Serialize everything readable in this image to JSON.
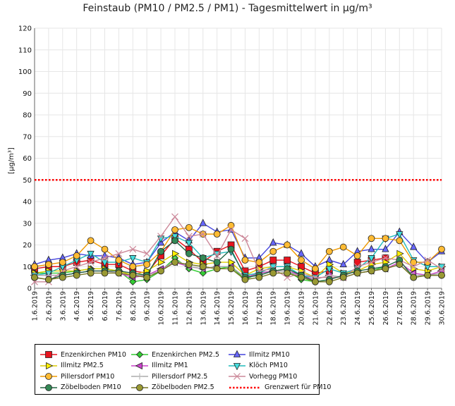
{
  "chart_data": {
    "type": "line",
    "title": "Feinstaub (PM10 / PM2.5 / PM1) -  Tagesmittelwert in µg/m³",
    "ylabel": "[µg/m³]",
    "xlabel": "",
    "ylim": [
      0,
      120
    ],
    "yticks": [
      0,
      10,
      20,
      30,
      40,
      50,
      60,
      70,
      80,
      90,
      100,
      110,
      120
    ],
    "grid": true,
    "legend_position": "bottom",
    "categories": [
      "1.6.2019",
      "2.6.2019",
      "3.6.2019",
      "4.6.2019",
      "5.6.2019",
      "6.6.2019",
      "7.6.2019",
      "8.6.2019",
      "9.6.2019",
      "10.6.2019",
      "11.6.2019",
      "12.6.2019",
      "13.6.2019",
      "14.6.2019",
      "15.6.2019",
      "16.6.2019",
      "17.6.2019",
      "18.6.2019",
      "19.6.2019",
      "20.6.2019",
      "21.6.2019",
      "22.6.2019",
      "23.6.2019",
      "24.6.2019",
      "25.6.2019",
      "26.6.2019",
      "27.6.2019",
      "28.6.2019",
      "29.6.2019",
      "30.6.2019"
    ],
    "series": [
      {
        "name": "Enzenkirchen PM10",
        "color": "#e8141e",
        "stroke": "#e8141e",
        "marker": "square",
        "values": [
          9,
          10,
          10,
          12,
          13,
          11,
          11,
          8,
          7,
          15,
          23,
          18,
          12,
          17,
          20,
          8,
          10,
          13,
          13,
          10,
          7,
          8,
          null,
          12,
          13,
          14,
          null,
          null,
          null,
          null
        ]
      },
      {
        "name": "Enzenkirchen PM2.5",
        "color": "#33cc33",
        "stroke": "#33cc33",
        "marker": "diamond",
        "values": [
          7,
          7,
          7,
          8,
          9,
          9,
          8,
          3,
          4,
          8,
          14,
          9,
          7,
          9,
          10,
          4,
          7,
          8,
          8,
          4,
          3,
          4,
          null,
          7,
          8,
          10,
          null,
          null,
          null,
          null
        ]
      },
      {
        "name": "Illmitz PM10",
        "color": "#6666ff",
        "stroke": "#4444dd",
        "marker": "triangle-up",
        "values": [
          11,
          13,
          14,
          16,
          15,
          15,
          14,
          11,
          12,
          21,
          26,
          22,
          30,
          26,
          27,
          14,
          14,
          21,
          20,
          16,
          10,
          13,
          11,
          17,
          18,
          18,
          26,
          19,
          12,
          17
        ]
      },
      {
        "name": "Illmitz PM2.5",
        "color": "#ffee00",
        "stroke": "#ddcc00",
        "marker": "triangle-right",
        "values": [
          7,
          8,
          8,
          8,
          9,
          9,
          8,
          6,
          8,
          12,
          16,
          12,
          11,
          12,
          12,
          6,
          9,
          10,
          10,
          8,
          5,
          11,
          7,
          8,
          11,
          12,
          16,
          9,
          8,
          10
        ]
      },
      {
        "name": "Illmitz PM1",
        "color": "#cc44cc",
        "stroke": "#cc44cc",
        "marker": "triangle-left",
        "values": [
          6,
          6,
          6,
          7,
          8,
          8,
          7,
          5,
          6,
          9,
          12,
          10,
          9,
          10,
          10,
          5,
          7,
          8,
          8,
          6,
          4,
          6,
          5,
          7,
          8,
          9,
          12,
          7,
          6,
          8
        ]
      },
      {
        "name": "Klöch PM10",
        "color": "#44dddd",
        "stroke": "#22bbbb",
        "marker": "triangle-down",
        "values": [
          6,
          7,
          10,
          13,
          16,
          12,
          12,
          14,
          12,
          23,
          24,
          21,
          14,
          16,
          17,
          6,
          7,
          10,
          10,
          6,
          5,
          9,
          7,
          9,
          14,
          23,
          25,
          13,
          10,
          10
        ]
      },
      {
        "name": "Pillersdorf PM10",
        "color": "#ffbb33",
        "stroke": "#ee9900",
        "marker": "circle",
        "values": [
          10,
          11,
          12,
          15,
          22,
          18,
          13,
          10,
          11,
          17,
          27,
          28,
          25,
          25,
          29,
          13,
          12,
          17,
          20,
          13,
          9,
          17,
          19,
          15,
          23,
          23,
          22,
          12,
          12,
          18
        ]
      },
      {
        "name": "Pillersdorf PM2.5",
        "color": "#bbbbbb",
        "stroke": "#aaaaaa",
        "marker": "plus",
        "values": [
          6,
          6,
          6,
          7,
          8,
          8,
          7,
          6,
          6,
          8,
          13,
          10,
          9,
          10,
          10,
          5,
          6,
          8,
          8,
          5,
          4,
          6,
          5,
          7,
          8,
          9,
          11,
          6,
          6,
          7
        ]
      },
      {
        "name": "Vorhegg PM10",
        "color": "#cc8899",
        "stroke": "#cc8899",
        "marker": "x",
        "values": [
          3,
          3,
          8,
          10,
          12,
          14,
          16,
          18,
          16,
          24,
          33,
          24,
          25,
          15,
          27,
          23,
          8,
          9,
          5,
          7,
          5,
          5,
          5,
          10,
          12,
          14,
          13,
          10,
          13,
          9
        ]
      },
      {
        "name": "Zöbelboden PM10",
        "color": "#338855",
        "stroke": "#226644",
        "marker": "circle",
        "values": [
          5,
          4,
          6,
          7,
          8,
          8,
          8,
          7,
          6,
          17,
          22,
          16,
          14,
          12,
          18,
          5,
          6,
          8,
          9,
          6,
          3,
          4,
          6,
          8,
          9,
          10,
          13,
          5,
          6,
          6
        ]
      },
      {
        "name": "Zöbelboden PM2.5",
        "color": "#999933",
        "stroke": "#777722",
        "marker": "circle",
        "values": [
          5,
          4,
          5,
          6,
          7,
          7,
          7,
          6,
          5,
          8,
          12,
          11,
          10,
          9,
          9,
          4,
          5,
          7,
          7,
          5,
          3,
          3,
          5,
          7,
          8,
          9,
          11,
          5,
          6,
          6
        ]
      },
      {
        "name": "Grenzwert für PM10",
        "color": "#ff0000",
        "stroke": "#ff0000",
        "marker": "none",
        "dashed": true,
        "values": [
          50,
          50,
          50,
          50,
          50,
          50,
          50,
          50,
          50,
          50,
          50,
          50,
          50,
          50,
          50,
          50,
          50,
          50,
          50,
          50,
          50,
          50,
          50,
          50,
          50,
          50,
          50,
          50,
          50,
          50
        ]
      }
    ]
  }
}
